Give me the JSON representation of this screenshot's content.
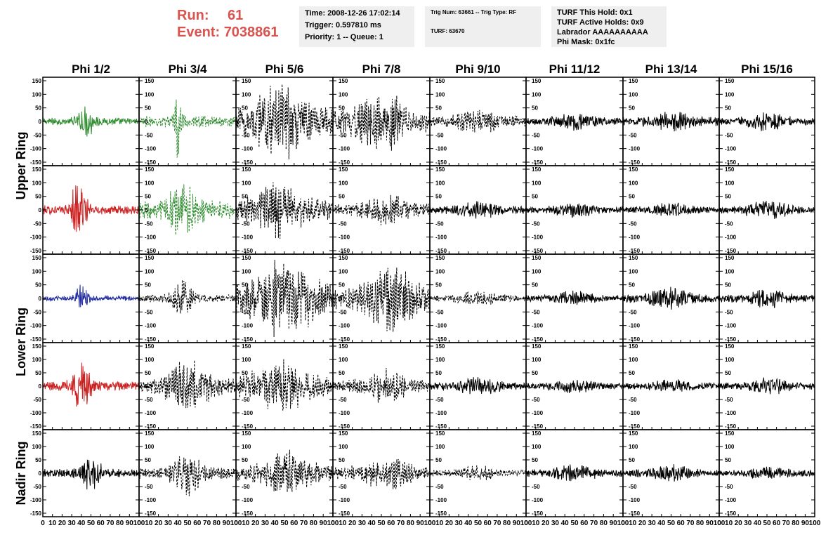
{
  "run": {
    "run_label": "Run:",
    "run_value": "61",
    "event_label": "Event:",
    "event_value": "7038861"
  },
  "info": {
    "time": "Time: 2008-12-26 17:02:14",
    "trigger": "Trigger: 0.597810 ms",
    "priority": "Priority: 1 -- Queue: 1",
    "trig_num": "Trig Num: 63661 -- Trig Type: RF",
    "turf_id": "TURF: 63670",
    "turf_hold": "TURF This Hold: 0x1",
    "turf_active": "TURF Active Holds: 0x9",
    "labrador": "Labrador AAAAAAAAAA",
    "phi_mask": "Phi Mask: 0x1fc"
  },
  "colors": {
    "header_red": "#d9534f",
    "green": "#2e8b2e",
    "red": "#cc2222",
    "blue": "#1f2aa0",
    "black": "#000000",
    "info_bg": "#efefef"
  },
  "chart_data": {
    "type": "line",
    "columns": [
      "Phi 1/2",
      "Phi 3/4",
      "Phi 5/6",
      "Phi 7/8",
      "Phi 9/10",
      "Phi 11/12",
      "Phi 13/14",
      "Phi 15/16"
    ],
    "row_labels": [
      {
        "label": "Upper Ring",
        "rows": [
          0,
          1
        ]
      },
      {
        "label": "Lower Ring",
        "rows": [
          2,
          3
        ]
      },
      {
        "label": "Nadir Ring",
        "rows": [
          4
        ]
      }
    ],
    "xlim": [
      0,
      100
    ],
    "ylim": [
      -150,
      150
    ],
    "x_ticks": [
      0,
      10,
      20,
      30,
      40,
      50,
      60,
      70,
      80,
      90,
      100
    ],
    "y_ticks": [
      -150,
      -100,
      -50,
      0,
      50,
      100,
      150
    ],
    "panels": [
      [
        {
          "color": "green",
          "dashed": false,
          "amp": 12,
          "burst_center": 45,
          "burst_width": 9,
          "burst_amp": 45
        },
        {
          "color": "green",
          "dashed": true,
          "amp": 18,
          "burst_center": 40,
          "burst_width": 3,
          "burst_amp": 120
        },
        {
          "color": "black",
          "dashed": true,
          "amp": 45,
          "burst_center": 45,
          "burst_width": 25,
          "burst_amp": 85
        },
        {
          "color": "black",
          "dashed": true,
          "amp": 35,
          "burst_center": 50,
          "burst_width": 25,
          "burst_amp": 70
        },
        {
          "color": "black",
          "dashed": true,
          "amp": 18,
          "burst_center": 50,
          "burst_width": 20,
          "burst_amp": 25
        },
        {
          "color": "black",
          "dashed": false,
          "amp": 12,
          "burst_center": 50,
          "burst_width": 20,
          "burst_amp": 18
        },
        {
          "color": "black",
          "dashed": false,
          "amp": 14,
          "burst_center": 50,
          "burst_width": 20,
          "burst_amp": 22
        },
        {
          "color": "black",
          "dashed": false,
          "amp": 12,
          "burst_center": 50,
          "burst_width": 20,
          "burst_amp": 20
        }
      ],
      [
        {
          "color": "red",
          "dashed": false,
          "amp": 15,
          "burst_center": 37,
          "burst_width": 8,
          "burst_amp": 90
        },
        {
          "color": "green",
          "dashed": true,
          "amp": 28,
          "burst_center": 45,
          "burst_width": 18,
          "burst_amp": 60
        },
        {
          "color": "black",
          "dashed": true,
          "amp": 30,
          "burst_center": 45,
          "burst_width": 25,
          "burst_amp": 65
        },
        {
          "color": "black",
          "dashed": true,
          "amp": 18,
          "burst_center": 55,
          "burst_width": 25,
          "burst_amp": 35
        },
        {
          "color": "black",
          "dashed": false,
          "amp": 12,
          "burst_center": 50,
          "burst_width": 20,
          "burst_amp": 20
        },
        {
          "color": "black",
          "dashed": false,
          "amp": 10,
          "burst_center": 50,
          "burst_width": 20,
          "burst_amp": 15
        },
        {
          "color": "black",
          "dashed": false,
          "amp": 10,
          "burst_center": 50,
          "burst_width": 20,
          "burst_amp": 16
        },
        {
          "color": "black",
          "dashed": false,
          "amp": 12,
          "burst_center": 50,
          "burst_width": 20,
          "burst_amp": 22
        }
      ],
      [
        {
          "color": "blue",
          "dashed": false,
          "amp": 8,
          "burst_center": 40,
          "burst_width": 6,
          "burst_amp": 40
        },
        {
          "color": "black",
          "dashed": true,
          "amp": 12,
          "burst_center": 45,
          "burst_width": 10,
          "burst_amp": 55
        },
        {
          "color": "black",
          "dashed": true,
          "amp": 50,
          "burst_center": 50,
          "burst_width": 30,
          "burst_amp": 80
        },
        {
          "color": "black",
          "dashed": true,
          "amp": 35,
          "burst_center": 60,
          "burst_width": 25,
          "burst_amp": 75
        },
        {
          "color": "black",
          "dashed": true,
          "amp": 10,
          "burst_center": 50,
          "burst_width": 20,
          "burst_amp": 15
        },
        {
          "color": "black",
          "dashed": false,
          "amp": 10,
          "burst_center": 50,
          "burst_width": 20,
          "burst_amp": 15
        },
        {
          "color": "black",
          "dashed": false,
          "amp": 14,
          "burst_center": 50,
          "burst_width": 20,
          "burst_amp": 25
        },
        {
          "color": "black",
          "dashed": false,
          "amp": 12,
          "burst_center": 50,
          "burst_width": 20,
          "burst_amp": 22
        }
      ],
      [
        {
          "color": "red",
          "dashed": false,
          "amp": 15,
          "burst_center": 40,
          "burst_width": 9,
          "burst_amp": 75
        },
        {
          "color": "black",
          "dashed": true,
          "amp": 25,
          "burst_center": 50,
          "burst_width": 22,
          "burst_amp": 65
        },
        {
          "color": "black",
          "dashed": true,
          "amp": 30,
          "burst_center": 45,
          "burst_width": 28,
          "burst_amp": 60
        },
        {
          "color": "black",
          "dashed": true,
          "amp": 18,
          "burst_center": 55,
          "burst_width": 22,
          "burst_amp": 40
        },
        {
          "color": "black",
          "dashed": false,
          "amp": 12,
          "burst_center": 50,
          "burst_width": 20,
          "burst_amp": 20
        },
        {
          "color": "black",
          "dashed": false,
          "amp": 10,
          "burst_center": 50,
          "burst_width": 20,
          "burst_amp": 14
        },
        {
          "color": "black",
          "dashed": false,
          "amp": 10,
          "burst_center": 50,
          "burst_width": 20,
          "burst_amp": 14
        },
        {
          "color": "black",
          "dashed": false,
          "amp": 12,
          "burst_center": 50,
          "burst_width": 20,
          "burst_amp": 20
        }
      ],
      [
        {
          "color": "black",
          "dashed": false,
          "amp": 14,
          "burst_center": 50,
          "burst_width": 10,
          "burst_amp": 50
        },
        {
          "color": "black",
          "dashed": true,
          "amp": 18,
          "burst_center": 50,
          "burst_width": 15,
          "burst_amp": 60
        },
        {
          "color": "black",
          "dashed": true,
          "amp": 25,
          "burst_center": 55,
          "burst_width": 25,
          "burst_amp": 50
        },
        {
          "color": "black",
          "dashed": true,
          "amp": 20,
          "burst_center": 55,
          "burst_width": 25,
          "burst_amp": 40
        },
        {
          "color": "black",
          "dashed": true,
          "amp": 10,
          "burst_center": 50,
          "burst_width": 20,
          "burst_amp": 15
        },
        {
          "color": "black",
          "dashed": false,
          "amp": 12,
          "burst_center": 50,
          "burst_width": 20,
          "burst_amp": 18
        },
        {
          "color": "black",
          "dashed": false,
          "amp": 12,
          "burst_center": 50,
          "burst_width": 20,
          "burst_amp": 18
        },
        {
          "color": "black",
          "dashed": false,
          "amp": 10,
          "burst_center": 50,
          "burst_width": 20,
          "burst_amp": 15
        }
      ]
    ]
  }
}
